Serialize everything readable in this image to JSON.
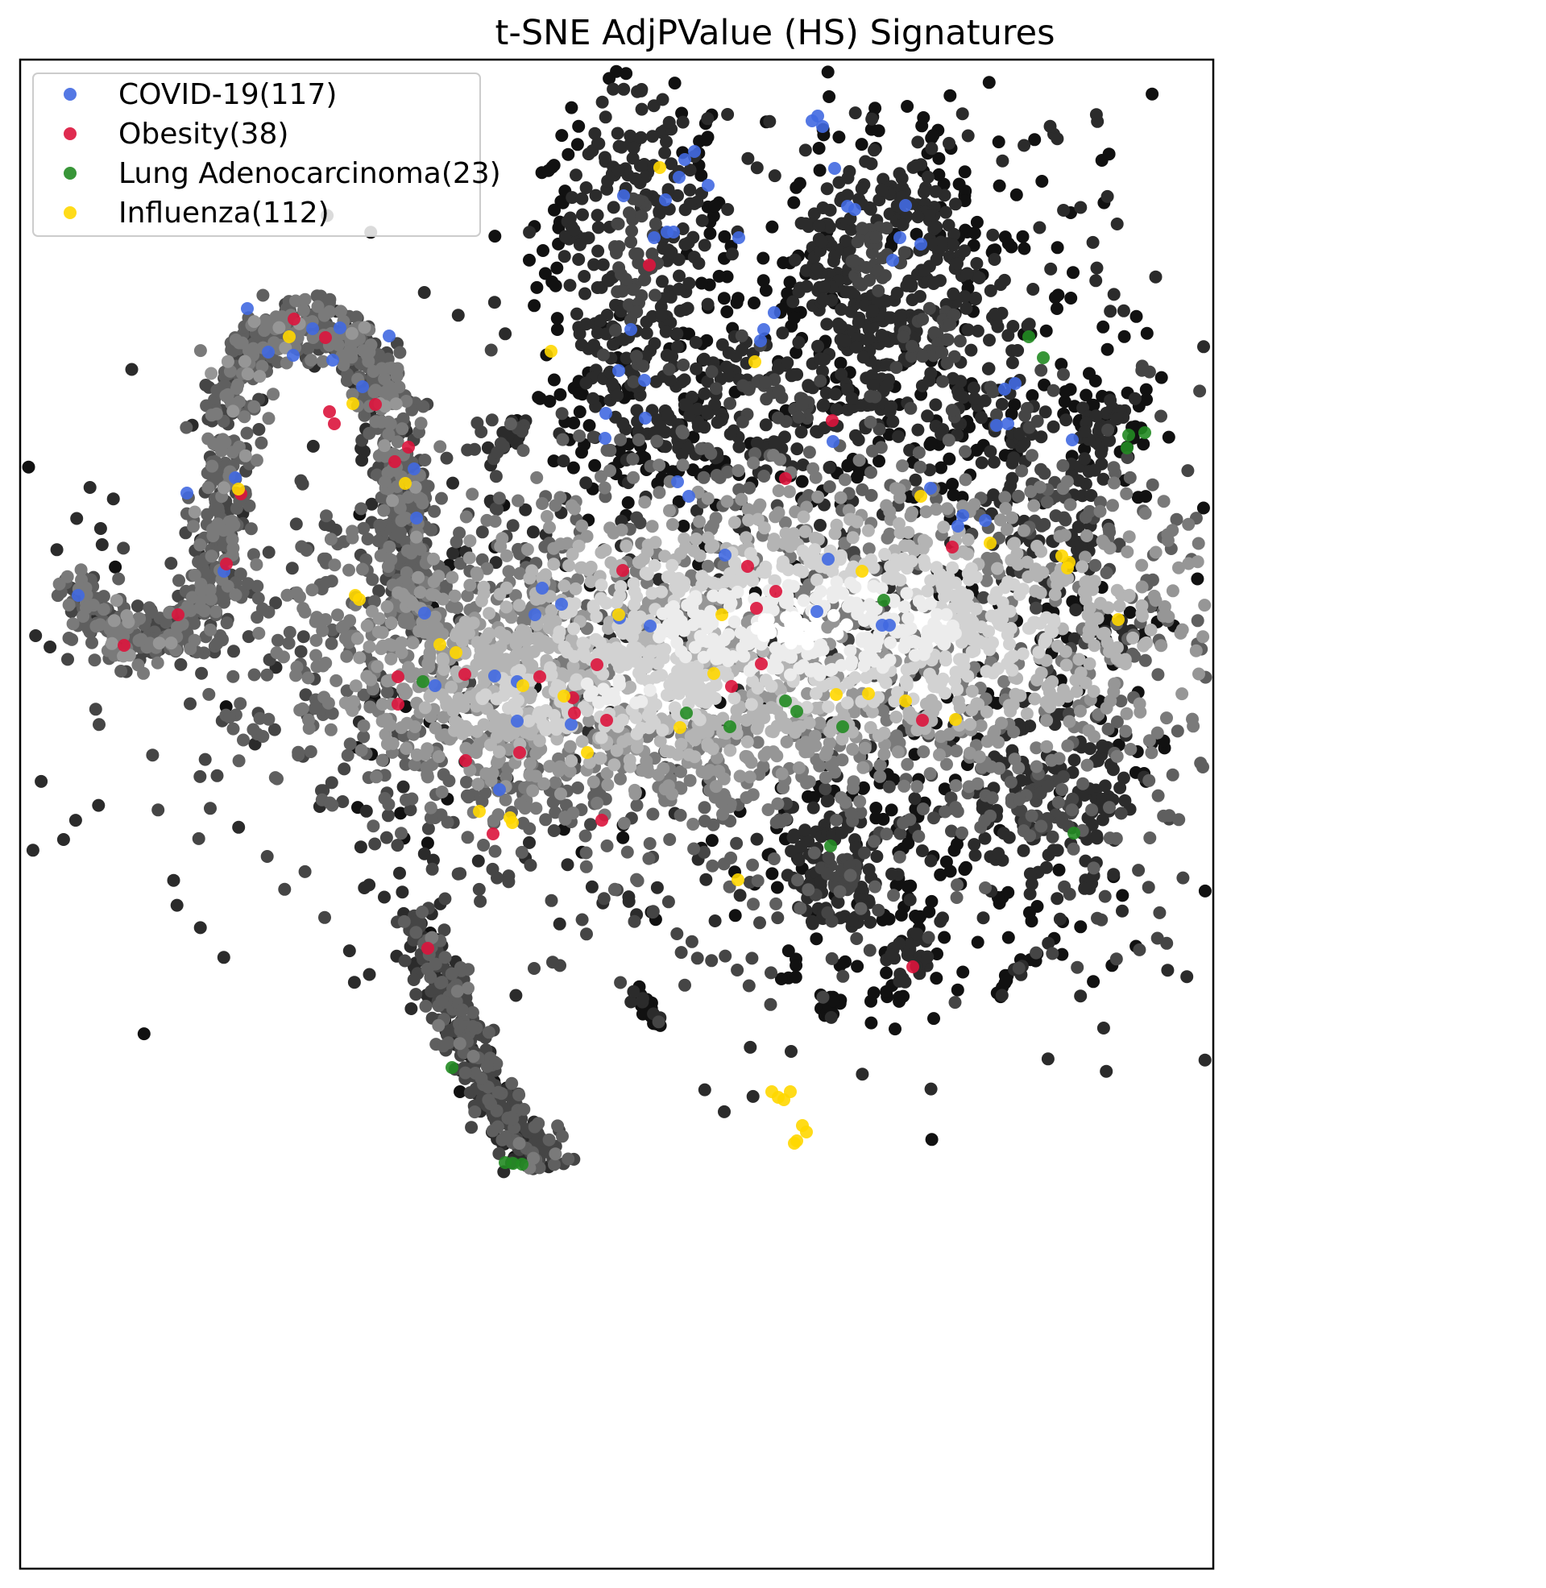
{
  "chart_data": {
    "type": "scatter",
    "title": "t-SNE AdjPValue (HS) Signatures",
    "xlabel": "",
    "ylabel": "",
    "axes_ticks": false,
    "grid": false,
    "legend_position": "top-left",
    "background_points": {
      "description_color": "grayscale by local density (dark sparse, white dense)",
      "colors": [
        "#111111",
        "#2b2b2b",
        "#454545",
        "#5f5f5f",
        "#7a7a7a",
        "#969696",
        "#b4b4b4",
        "#d2d2d2",
        "#ececec",
        "#ffffff"
      ]
    },
    "series": [
      {
        "name": "COVID-19(117)",
        "color": "#4169E1",
        "points": [
          [
            97,
            739
          ],
          [
            307,
            383
          ],
          [
            232,
            612
          ],
          [
            292,
            593
          ],
          [
            278,
            709
          ],
          [
            333,
            437
          ],
          [
            364,
            441
          ],
          [
            388,
            408
          ],
          [
            422,
            407
          ],
          [
            413,
            447
          ],
          [
            450,
            480
          ],
          [
            483,
            417
          ],
          [
            514,
            582
          ],
          [
            517,
            643
          ],
          [
            527,
            761
          ],
          [
            540,
            851
          ],
          [
            620,
            980
          ],
          [
            614,
            839
          ],
          [
            642,
            846
          ],
          [
            642,
            895
          ],
          [
            709,
            899
          ],
          [
            673,
            730
          ],
          [
            697,
            750
          ],
          [
            664,
            763
          ],
          [
            769,
            767
          ],
          [
            807,
            777
          ],
          [
            752,
            513
          ],
          [
            751,
            544
          ],
          [
            768,
            460
          ],
          [
            800,
            472
          ],
          [
            783,
            409
          ],
          [
            801,
            519
          ],
          [
            774,
            243
          ],
          [
            812,
            295
          ],
          [
            828,
            288
          ],
          [
            836,
            288
          ],
          [
            826,
            248
          ],
          [
            850,
            198
          ],
          [
            862,
            188
          ],
          [
            843,
            220
          ],
          [
            879,
            230
          ],
          [
            917,
            295
          ],
          [
            855,
            616
          ],
          [
            841,
            598
          ],
          [
            961,
            388
          ],
          [
            948,
            409
          ],
          [
            944,
            423
          ],
          [
            900,
            689
          ],
          [
            1028,
            694
          ],
          [
            1014,
            759
          ],
          [
            1095,
            776
          ],
          [
            1104,
            776
          ],
          [
            1034,
            548
          ],
          [
            1036,
            209
          ],
          [
            1015,
            144
          ],
          [
            1008,
            150
          ],
          [
            1021,
            157
          ],
          [
            1052,
            256
          ],
          [
            1061,
            260
          ],
          [
            1124,
            255
          ],
          [
            1117,
            295
          ],
          [
            1143,
            303
          ],
          [
            1108,
            323
          ],
          [
            1247,
            483
          ],
          [
            1260,
            476
          ],
          [
            1237,
            528
          ],
          [
            1251,
            526
          ],
          [
            1155,
            606
          ],
          [
            1195,
            640
          ],
          [
            1189,
            653
          ],
          [
            1223,
            646
          ],
          [
            1331,
            546
          ]
        ]
      },
      {
        "name": "Obesity(38)",
        "color": "#DC143C",
        "points": [
          [
            154,
            801
          ],
          [
            221,
            763
          ],
          [
            281,
            700
          ],
          [
            299,
            613
          ],
          [
            365,
            396
          ],
          [
            404,
            419
          ],
          [
            409,
            511
          ],
          [
            415,
            526
          ],
          [
            466,
            502
          ],
          [
            507,
            555
          ],
          [
            490,
            573
          ],
          [
            494,
            840
          ],
          [
            494,
            874
          ],
          [
            577,
            837
          ],
          [
            578,
            944
          ],
          [
            670,
            840
          ],
          [
            645,
            934
          ],
          [
            711,
            866
          ],
          [
            713,
            885
          ],
          [
            753,
            894
          ],
          [
            741,
            825
          ],
          [
            773,
            708
          ],
          [
            806,
            329
          ],
          [
            928,
            703
          ],
          [
            939,
            755
          ],
          [
            963,
            734
          ],
          [
            945,
            824
          ],
          [
            908,
            852
          ],
          [
            975,
            594
          ],
          [
            1033,
            522
          ],
          [
            1182,
            679
          ],
          [
            1145,
            894
          ],
          [
            612,
            1035
          ],
          [
            747,
            1018
          ],
          [
            531,
            1177
          ],
          [
            1133,
            1200
          ]
        ]
      },
      {
        "name": "Lung Adenocarcinoma(23)",
        "color": "#228B22",
        "points": [
          [
            525,
            846
          ],
          [
            852,
            885
          ],
          [
            906,
            902
          ],
          [
            975,
            870
          ],
          [
            989,
            883
          ],
          [
            1046,
            902
          ],
          [
            1097,
            745
          ],
          [
            1031,
            1050
          ],
          [
            1333,
            1034
          ],
          [
            1277,
            418
          ],
          [
            1295,
            444
          ],
          [
            1401,
            540
          ],
          [
            1421,
            537
          ],
          [
            1399,
            556
          ],
          [
            561,
            1325
          ],
          [
            627,
            1443
          ],
          [
            637,
            1444
          ],
          [
            648,
            1445
          ]
        ]
      },
      {
        "name": "Influenza(112)",
        "color": "#FFD700",
        "points": [
          [
            359,
            418
          ],
          [
            438,
            501
          ],
          [
            296,
            607
          ],
          [
            503,
            600
          ],
          [
            441,
            739
          ],
          [
            446,
            744
          ],
          [
            546,
            800
          ],
          [
            566,
            810
          ],
          [
            649,
            851
          ],
          [
            700,
            864
          ],
          [
            729,
            934
          ],
          [
            768,
            763
          ],
          [
            684,
            436
          ],
          [
            819,
            208
          ],
          [
            937,
            449
          ],
          [
            886,
            836
          ],
          [
            844,
            903
          ],
          [
            896,
            763
          ],
          [
            1070,
            709
          ],
          [
            1038,
            862
          ],
          [
            1078,
            861
          ],
          [
            1124,
            870
          ],
          [
            1186,
            893
          ],
          [
            1143,
            616
          ],
          [
            1229,
            674
          ],
          [
            1318,
            690
          ],
          [
            1325,
            705
          ],
          [
            1327,
            698
          ],
          [
            1388,
            769
          ],
          [
            595,
            1007
          ],
          [
            633,
            1015
          ],
          [
            636,
            1021
          ],
          [
            916,
            1092
          ],
          [
            958,
            1355
          ],
          [
            966,
            1362
          ],
          [
            973,
            1365
          ],
          [
            981,
            1355
          ],
          [
            996,
            1397
          ],
          [
            989,
            1416
          ],
          [
            1001,
            1405
          ],
          [
            986,
            1419
          ]
        ]
      }
    ]
  }
}
